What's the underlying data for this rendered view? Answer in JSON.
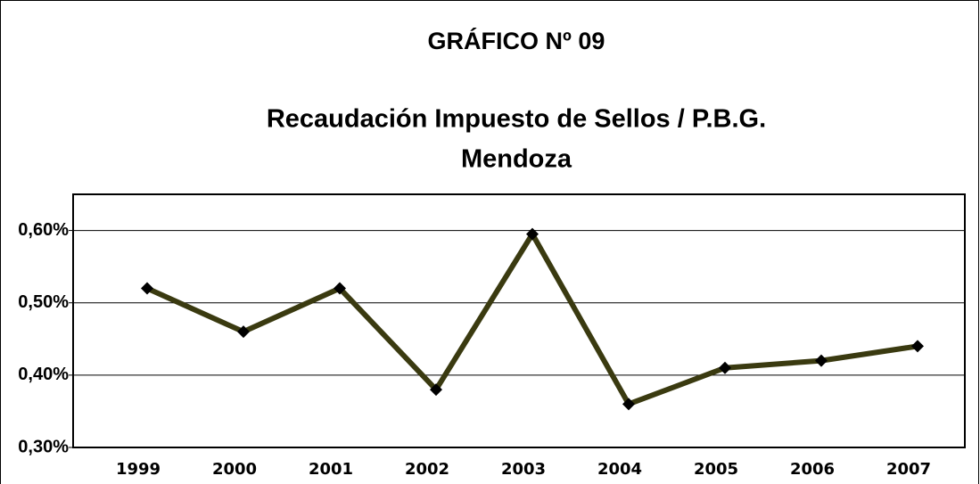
{
  "chart_data": {
    "type": "line",
    "title": "GRÁFICO Nº 09",
    "subtitle": [
      "Recaudación Impuesto de Sellos / P.B.G.",
      "Mendoza"
    ],
    "categories": [
      "1999",
      "2000",
      "2001",
      "2002",
      "2003",
      "2004",
      "2005",
      "2006",
      "2007"
    ],
    "series": [
      {
        "name": "Recaudación Impuesto de Sellos / P.B.G.",
        "color": "#3a3a10",
        "values": [
          0.52,
          0.46,
          0.52,
          0.38,
          0.595,
          0.36,
          0.41,
          0.42,
          0.44
        ]
      }
    ],
    "ylim": [
      0.3,
      0.65
    ],
    "yticks": [
      {
        "value": 0.3,
        "label": "0,30%"
      },
      {
        "value": 0.4,
        "label": "0,40%"
      },
      {
        "value": 0.5,
        "label": "0,50%"
      },
      {
        "value": 0.6,
        "label": "0,60%"
      }
    ],
    "grid": true,
    "legend": false
  }
}
